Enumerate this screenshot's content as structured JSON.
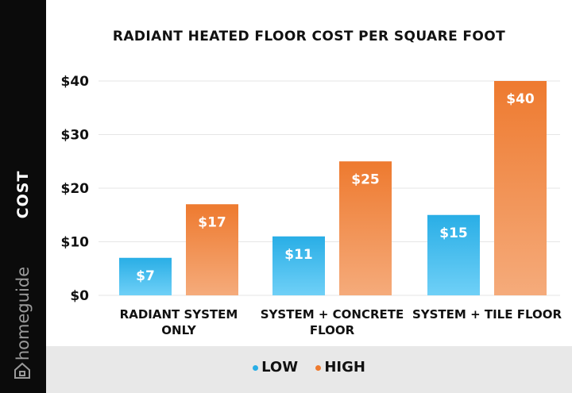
{
  "side_label": "COST",
  "brand": "homeguide",
  "legend": {
    "items": [
      {
        "label": "LOW",
        "color": "#29aee6"
      },
      {
        "label": "HIGH",
        "color": "#ee7a2f"
      }
    ]
  },
  "colors": {
    "low_top": "#29aee6",
    "low_bottom": "#6fd0f7",
    "high_top": "#ee7a2f",
    "high_bottom": "#f5ab7b",
    "sidebar": "#0b0b0b",
    "legend_band": "#e8e8e8"
  },
  "icons": {
    "brand": "home-icon"
  },
  "chart_data": {
    "type": "bar",
    "title": "RADIANT HEATED FLOOR COST PER SQUARE FOOT",
    "ylabel": "COST",
    "xlabel": "",
    "ylim": [
      0,
      40
    ],
    "yticks": [
      "$0",
      "$10",
      "$20",
      "$30",
      "$40"
    ],
    "ytick_values": [
      0,
      10,
      20,
      30,
      40
    ],
    "grid": true,
    "legend_position": "bottom",
    "categories": [
      [
        "RADIANT SYSTEM",
        "ONLY"
      ],
      [
        "SYSTEM + CONCRETE",
        "FLOOR"
      ],
      [
        "SYSTEM + TILE FLOOR"
      ]
    ],
    "series": [
      {
        "name": "LOW",
        "values": [
          7,
          11,
          15
        ],
        "labels": [
          "$7",
          "$11",
          "$15"
        ]
      },
      {
        "name": "HIGH",
        "values": [
          17,
          25,
          40
        ],
        "labels": [
          "$17",
          "$25",
          "$40"
        ]
      }
    ]
  }
}
